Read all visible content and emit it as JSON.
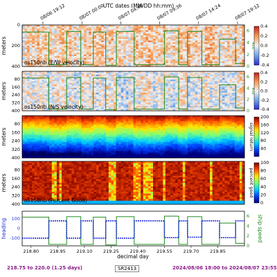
{
  "header": {
    "title": "UTC dates (MM/DD hh:mm)"
  },
  "chart_data": {
    "type": "heatmap",
    "top_time_ticks": [
      "08/06 19:12",
      "08/07 00:00",
      "08/07 04:48",
      "08/07 09:36",
      "08/07 14:24",
      "08/07 19:12"
    ],
    "xlabel": "decimal day",
    "xticks": [
      "218.80",
      "218.95",
      "219.10",
      "219.25",
      "219.40",
      "219.55",
      "219.70",
      "219.85"
    ],
    "xlim": [
      218.75,
      220.0
    ],
    "shared_right_axis": {
      "label": "kts",
      "ticks": [
        "0",
        "2",
        "4",
        "6"
      ],
      "ylim": [
        0,
        7
      ]
    },
    "panels": [
      {
        "name": "os150nb (E/W velocity)",
        "ylabel": "meters",
        "yticks": [
          "0",
          "200",
          "400"
        ],
        "ylim": [
          400,
          0
        ],
        "colorbar": {
          "label": "m/s",
          "ticks": [
            "-0.4",
            "-0.2",
            "0.0",
            "0.2",
            "0.4"
          ],
          "range": [
            -0.4,
            0.4
          ],
          "colors": [
            "#2b2bd9",
            "#73a6e6",
            "#f2f2f2",
            "#f59b52",
            "#c3221f"
          ]
        }
      },
      {
        "name": "os150nb (N/S velocity)",
        "ylabel": "meters",
        "yticks": [
          "80",
          "160",
          "240",
          "320",
          "400"
        ],
        "ylim": [
          400,
          0
        ],
        "colorbar": {
          "label": "m/s",
          "ticks": [
            "-0.4",
            "-0.2",
            "0.0",
            "0.2",
            "0.4"
          ],
          "range": [
            -0.4,
            0.4
          ],
          "colors": [
            "#2b2bd9",
            "#73a6e6",
            "#f2f2f2",
            "#f59b52",
            "#c3221f"
          ]
        }
      },
      {
        "name": "os150nb (Signal return)",
        "ylabel": "meters",
        "yticks": [
          "80",
          "160",
          "240",
          "320",
          "400"
        ],
        "ylim": [
          400,
          0
        ],
        "colorbar": {
          "label": "signal return",
          "ticks": [
            "40",
            "80",
            "120",
            "160",
            "200"
          ],
          "range": [
            0,
            200
          ],
          "colors": [
            "#00007f",
            "#0040ff",
            "#00d0ff",
            "#7dff7a",
            "#ffe600",
            "#ff4a00",
            "#7f0000"
          ]
        }
      },
      {
        "name": "os150nb (Percent Good)",
        "ylabel": "meters",
        "yticks": [
          "80",
          "160",
          "240",
          "320",
          "400"
        ],
        "ylim": [
          400,
          0
        ],
        "colorbar": {
          "label": "percent good",
          "ticks": [
            "0",
            "20",
            "40",
            "60",
            "80",
            "100"
          ],
          "range": [
            0,
            100
          ],
          "colors": [
            "#00007f",
            "#0040ff",
            "#00d0ff",
            "#7dff7a",
            "#ffe600",
            "#ff4a00",
            "#7f0000"
          ]
        }
      }
    ],
    "heading_panel": {
      "left_label": "heading",
      "left_ticks": [
        "100",
        "0",
        "-100"
      ],
      "left_ylim": [
        -180,
        180
      ],
      "right_label": "ship speed",
      "right_ticks": [
        "0",
        "2",
        "4",
        "6"
      ],
      "right_ylim": [
        0,
        7
      ],
      "heading_color": "#1f2dd9",
      "speed_color": "#1f8a1f"
    },
    "ship_speed_kts": {
      "x": [
        218.75,
        218.9,
        218.9,
        219.0,
        219.0,
        219.08,
        219.08,
        219.15,
        219.15,
        219.22,
        219.22,
        219.28,
        219.28,
        219.38,
        219.38,
        219.55,
        219.55,
        219.63,
        219.63,
        219.68,
        219.68,
        219.76,
        219.76,
        219.86,
        219.86,
        219.95,
        219.95,
        220.0
      ],
      "y": [
        5.8,
        5.8,
        0.3,
        0.3,
        5.9,
        5.9,
        0.3,
        0.3,
        5.8,
        5.8,
        0.2,
        0.2,
        5.9,
        5.9,
        0.3,
        0.3,
        6.0,
        6.0,
        0.3,
        0.3,
        5.9,
        5.9,
        0.3,
        0.3,
        4.6,
        4.6,
        0.5,
        0.5
      ]
    },
    "heading_deg": {
      "x": [
        218.75,
        218.9,
        218.9,
        219.0,
        219.0,
        219.08,
        219.08,
        219.15,
        219.15,
        219.22,
        219.22,
        219.28,
        219.28,
        219.38,
        219.38,
        219.55,
        219.55,
        219.63,
        219.63,
        219.68,
        219.68,
        219.76,
        219.76,
        219.86,
        219.86,
        219.95,
        219.95,
        220.0
      ],
      "y": [
        -100,
        -100,
        80,
        80,
        -100,
        -100,
        80,
        80,
        -100,
        -100,
        80,
        80,
        -100,
        -100,
        80,
        80,
        -95,
        -95,
        80,
        80,
        -90,
        -90,
        80,
        80,
        -95,
        -95,
        80,
        80
      ]
    }
  },
  "footer": {
    "range": "218.75 to 220.0 (1.25 days)",
    "cruise": "SR2413",
    "dates": "2024/08/06 18:00 to 2024/08/07 23:55",
    "range_color": "#8a1c8a",
    "dates_color": "#8a1c8a"
  }
}
